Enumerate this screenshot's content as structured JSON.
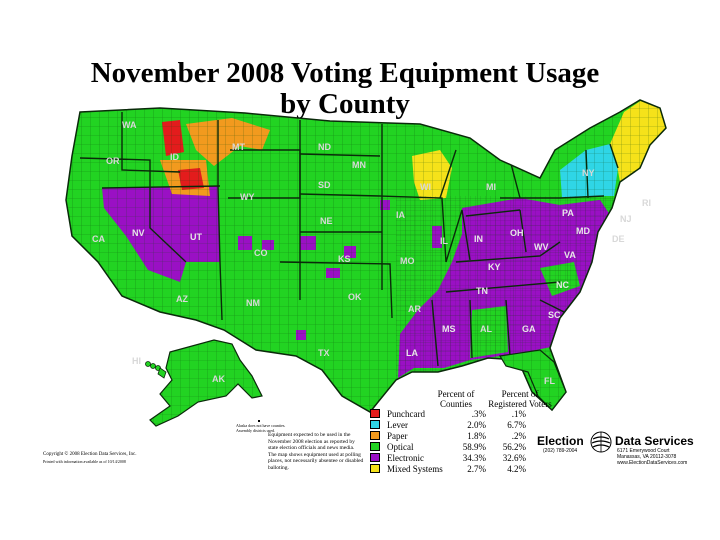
{
  "title": {
    "line1": "November 2008 Voting Equipment Usage",
    "line2": "by County"
  },
  "state_labels": [
    "WA",
    "OR",
    "CA",
    "NV",
    "ID",
    "MT",
    "WY",
    "UT",
    "CO",
    "AZ",
    "NM",
    "ND",
    "SD",
    "NE",
    "KS",
    "OK",
    "TX",
    "MN",
    "IA",
    "MO",
    "AR",
    "LA",
    "WI",
    "IL",
    "MI",
    "IN",
    "OH",
    "KY",
    "TN",
    "MS",
    "AL",
    "GA",
    "FL",
    "SC",
    "NC",
    "VA",
    "WV",
    "PA",
    "NY",
    "MD",
    "DE",
    "NJ",
    "RI",
    "AK",
    "HI"
  ],
  "legend": {
    "col1_header": [
      "Percent of",
      "Counties"
    ],
    "col2_header": [
      "Percent of",
      "Registered Voters"
    ],
    "rows": [
      {
        "label": "Punchcard",
        "pct_counties": ".3%",
        "pct_voters": ".1%",
        "color": "#e31c1c"
      },
      {
        "label": "Lever",
        "pct_counties": "2.0%",
        "pct_voters": "6.7%",
        "color": "#2fd6e6"
      },
      {
        "label": "Paper",
        "pct_counties": "1.8%",
        "pct_voters": ".2%",
        "color": "#f29a1e"
      },
      {
        "label": "Optical",
        "pct_counties": "58.9%",
        "pct_voters": "56.2%",
        "color": "#22d322"
      },
      {
        "label": "Electronic",
        "pct_counties": "34.3%",
        "pct_voters": "32.6%",
        "color": "#9a10c4"
      },
      {
        "label": "Mixed Systems",
        "pct_counties": "2.7%",
        "pct_voters": "4.2%",
        "color": "#f5e21a"
      }
    ]
  },
  "alaska_note": "Alaska does not have counties. Assembly districts used.",
  "equipment_note": "Equipment expected to be used in the November 2008 election as reported by state election officials and news media. The map shows equipment used at polling places, not necessarily absentee or disabled balloting.",
  "copyright": "Copyright © 2008 Election Data Services, Inc.",
  "printed_note": "Printed with information available as of 10/14/2008",
  "logo": {
    "word1": "Election",
    "word2": "Data Services",
    "phone": "(202) 789-2004",
    "address1": "6171 Emerywood Court",
    "address2": "Manassas, VA 20112-3078",
    "website": "www.ElectionDataServices.com"
  },
  "colors": {
    "optical": "#22d322",
    "electronic": "#9a10c4",
    "lever": "#2fd6e6",
    "paper": "#f29a1e",
    "punchcard": "#e31c1c",
    "mixed": "#f5e21a",
    "county_border": "#0a4a0a"
  }
}
